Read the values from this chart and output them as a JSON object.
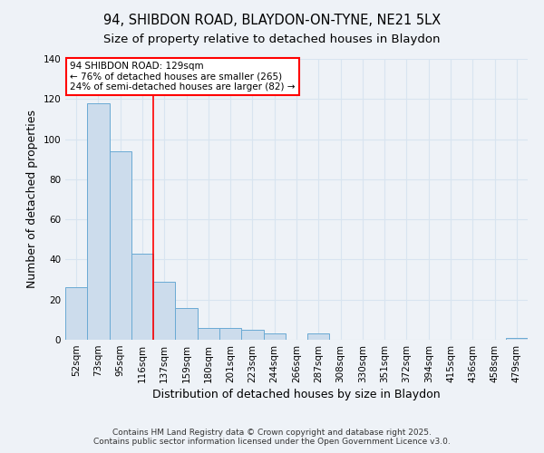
{
  "title_line1": "94, SHIBDON ROAD, BLAYDON-ON-TYNE, NE21 5LX",
  "title_line2": "Size of property relative to detached houses in Blaydon",
  "xlabel": "Distribution of detached houses by size in Blaydon",
  "ylabel": "Number of detached properties",
  "categories": [
    "52sqm",
    "73sqm",
    "95sqm",
    "116sqm",
    "137sqm",
    "159sqm",
    "180sqm",
    "201sqm",
    "223sqm",
    "244sqm",
    "266sqm",
    "287sqm",
    "308sqm",
    "330sqm",
    "351sqm",
    "372sqm",
    "394sqm",
    "415sqm",
    "436sqm",
    "458sqm",
    "479sqm"
  ],
  "values": [
    26,
    118,
    94,
    43,
    29,
    16,
    6,
    6,
    5,
    3,
    0,
    3,
    0,
    0,
    0,
    0,
    0,
    0,
    0,
    0,
    1
  ],
  "bar_color": "#ccdcec",
  "bar_edge_color": "#6aaad4",
  "vline_x_index": 3.5,
  "vline_color": "red",
  "annotation_text": "94 SHIBDON ROAD: 129sqm\n← 76% of detached houses are smaller (265)\n24% of semi-detached houses are larger (82) →",
  "annotation_box_color": "white",
  "annotation_box_edge_color": "red",
  "ylim": [
    0,
    140
  ],
  "yticks": [
    0,
    20,
    40,
    60,
    80,
    100,
    120,
    140
  ],
  "footer_line1": "Contains HM Land Registry data © Crown copyright and database right 2025.",
  "footer_line2": "Contains public sector information licensed under the Open Government Licence v3.0.",
  "background_color": "#eef2f7",
  "grid_color": "#d8e4f0",
  "title_fontsize": 10.5,
  "subtitle_fontsize": 9.5,
  "axis_label_fontsize": 9,
  "tick_fontsize": 7.5,
  "annotation_fontsize": 7.5,
  "footer_fontsize": 6.5
}
